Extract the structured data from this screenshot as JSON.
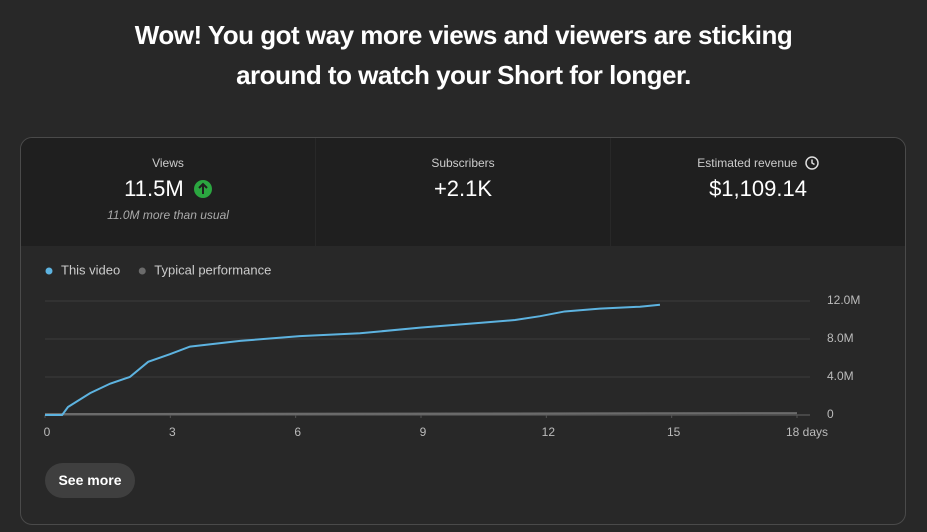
{
  "headline": [
    "Wow! You got way more views and viewers are sticking",
    "around to watch your Short for longer."
  ],
  "metrics": [
    {
      "label": "Views",
      "value": "11.5M",
      "note": "11.0M more than usual"
    },
    {
      "label": "Subscribers",
      "value": "+2.1K"
    },
    {
      "label": "Estimated revenue",
      "value": "$1,109.14"
    }
  ],
  "chart_data": {
    "type": "line",
    "series": [
      {
        "name": "This video",
        "color": "#5db3e0",
        "x": [
          0,
          0.41,
          0.55,
          1.08,
          1.56,
          2.03,
          2.47,
          2.99,
          3.47,
          4.67,
          6.1,
          7.54,
          8.98,
          10.41,
          11.25,
          11.85,
          12.44,
          13.28,
          14.24,
          14.72
        ],
        "values": [
          0,
          0,
          840000,
          2300000,
          3300000,
          4000000,
          5600000,
          6400000,
          7200000,
          7800000,
          8300000,
          8600000,
          9200000,
          9700000,
          10000000,
          10400000,
          10900000,
          11200000,
          11400000,
          11600000
        ]
      },
      {
        "name": "Typical performance",
        "color": "#6b6b6b",
        "x": [
          0,
          18
        ],
        "values": [
          100000,
          200000
        ]
      }
    ],
    "xlim": [
      0,
      18
    ],
    "xticks": [
      0,
      3,
      6,
      9,
      12,
      15,
      {
        "value": 18,
        "label": "18 days"
      }
    ],
    "ylim": [
      0,
      12000000
    ],
    "yticks": [
      0,
      {
        "value": 4000000,
        "label": "4.0M"
      },
      {
        "value": 8000000,
        "label": "8.0M"
      },
      {
        "value": 12000000,
        "label": "12.0M"
      }
    ],
    "grid": true
  },
  "button": "See more"
}
